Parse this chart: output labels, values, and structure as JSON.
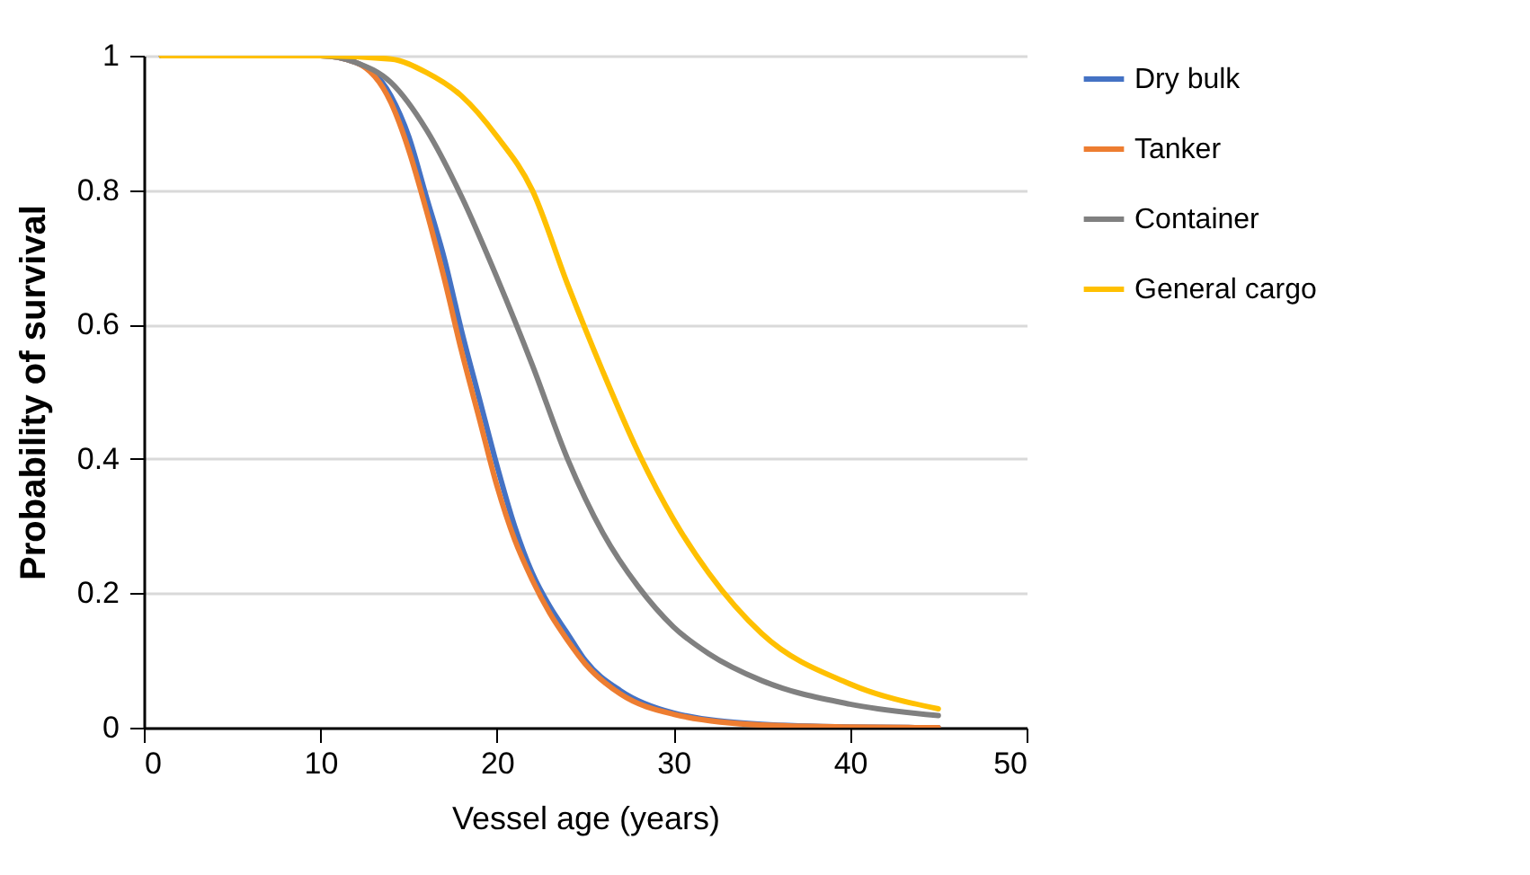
{
  "chart_data": {
    "type": "line",
    "xlabel": "Vessel age (years)",
    "ylabel": "Probability of survival",
    "xlim": [
      0,
      50
    ],
    "xticks": [
      0,
      10,
      20,
      30,
      40,
      50
    ],
    "ylim": [
      0,
      1
    ],
    "yticks": [
      0,
      0.2,
      0.4,
      0.6,
      0.8,
      1
    ],
    "grid": "y",
    "legend": "right",
    "marker": "none",
    "line_style": "solid",
    "series": [
      {
        "name": "Dry bulk",
        "color": "#4472c4",
        "x": [
          1,
          10,
          12,
          14,
          15,
          16,
          17,
          18,
          19,
          20,
          21,
          22,
          23,
          24,
          25,
          27,
          30,
          35,
          40,
          45
        ],
        "values": [
          1,
          1,
          0.99,
          0.94,
          0.88,
          0.79,
          0.7,
          0.59,
          0.49,
          0.39,
          0.3,
          0.23,
          0.18,
          0.14,
          0.1,
          0.055,
          0.022,
          0.005,
          0.001,
          0
        ]
      },
      {
        "name": "Tanker",
        "color": "#ed7d31",
        "x": [
          1,
          10,
          12,
          14,
          15,
          16,
          17,
          18,
          19,
          20,
          21,
          22,
          23,
          24,
          25,
          27,
          30,
          35,
          40,
          45
        ],
        "values": [
          1,
          1,
          0.99,
          0.93,
          0.86,
          0.77,
          0.67,
          0.56,
          0.46,
          0.36,
          0.28,
          0.22,
          0.17,
          0.13,
          0.095,
          0.05,
          0.02,
          0.004,
          0.001,
          0
        ]
      },
      {
        "name": "Container",
        "color": "#808080",
        "x": [
          1,
          10,
          12,
          14,
          16,
          18,
          20,
          22,
          24,
          26,
          28,
          30,
          32,
          35,
          40,
          45
        ],
        "values": [
          1,
          1,
          0.99,
          0.96,
          0.89,
          0.79,
          0.67,
          0.54,
          0.4,
          0.29,
          0.21,
          0.15,
          0.11,
          0.07,
          0.035,
          0.018
        ]
      },
      {
        "name": "General cargo",
        "color": "#ffc000",
        "x": [
          1,
          10,
          14,
          16,
          18,
          20,
          22,
          24,
          26,
          28,
          30,
          32,
          35,
          40,
          45
        ],
        "values": [
          1,
          1,
          0.995,
          0.975,
          0.94,
          0.88,
          0.8,
          0.66,
          0.53,
          0.41,
          0.31,
          0.23,
          0.14,
          0.065,
          0.028
        ]
      }
    ]
  }
}
